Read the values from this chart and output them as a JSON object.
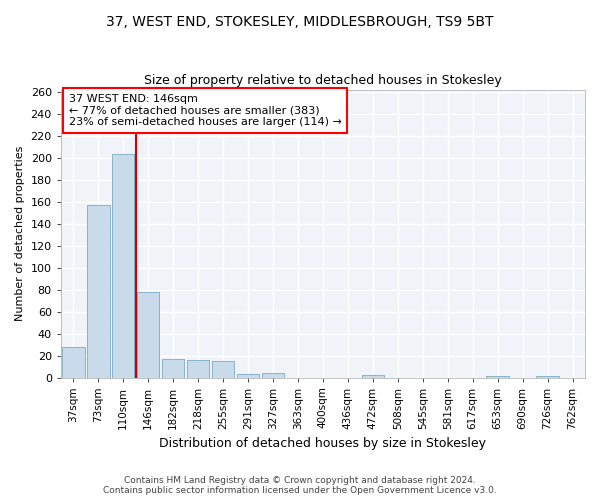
{
  "title_line1": "37, WEST END, STOKESLEY, MIDDLESBROUGH, TS9 5BT",
  "title_line2": "Size of property relative to detached houses in Stokesley",
  "xlabel": "Distribution of detached houses by size in Stokesley",
  "ylabel": "Number of detached properties",
  "categories": [
    "37sqm",
    "73sqm",
    "110sqm",
    "146sqm",
    "182sqm",
    "218sqm",
    "255sqm",
    "291sqm",
    "327sqm",
    "363sqm",
    "400sqm",
    "436sqm",
    "472sqm",
    "508sqm",
    "545sqm",
    "581sqm",
    "617sqm",
    "653sqm",
    "690sqm",
    "726sqm",
    "762sqm"
  ],
  "values": [
    28,
    157,
    203,
    78,
    17,
    16,
    15,
    3,
    4,
    0,
    0,
    0,
    2,
    0,
    0,
    0,
    0,
    1,
    0,
    1,
    0
  ],
  "bar_color": "#c9daea",
  "bar_edge_color": "#7aaac8",
  "vline_x": 2.5,
  "vline_color": "#cc0000",
  "annotation_line1": "37 WEST END: 146sqm",
  "annotation_line2": "← 77% of detached houses are smaller (383)",
  "annotation_line3": "23% of semi-detached houses are larger (114) →",
  "ylim": [
    0,
    262
  ],
  "yticks": [
    0,
    20,
    40,
    60,
    80,
    100,
    120,
    140,
    160,
    180,
    200,
    220,
    240,
    260
  ],
  "bg_color": "#ffffff",
  "plot_bg_color": "#f0f4f8",
  "grid_color": "#ffffff",
  "footer_line1": "Contains HM Land Registry data © Crown copyright and database right 2024.",
  "footer_line2": "Contains public sector information licensed under the Open Government Licence v3.0."
}
